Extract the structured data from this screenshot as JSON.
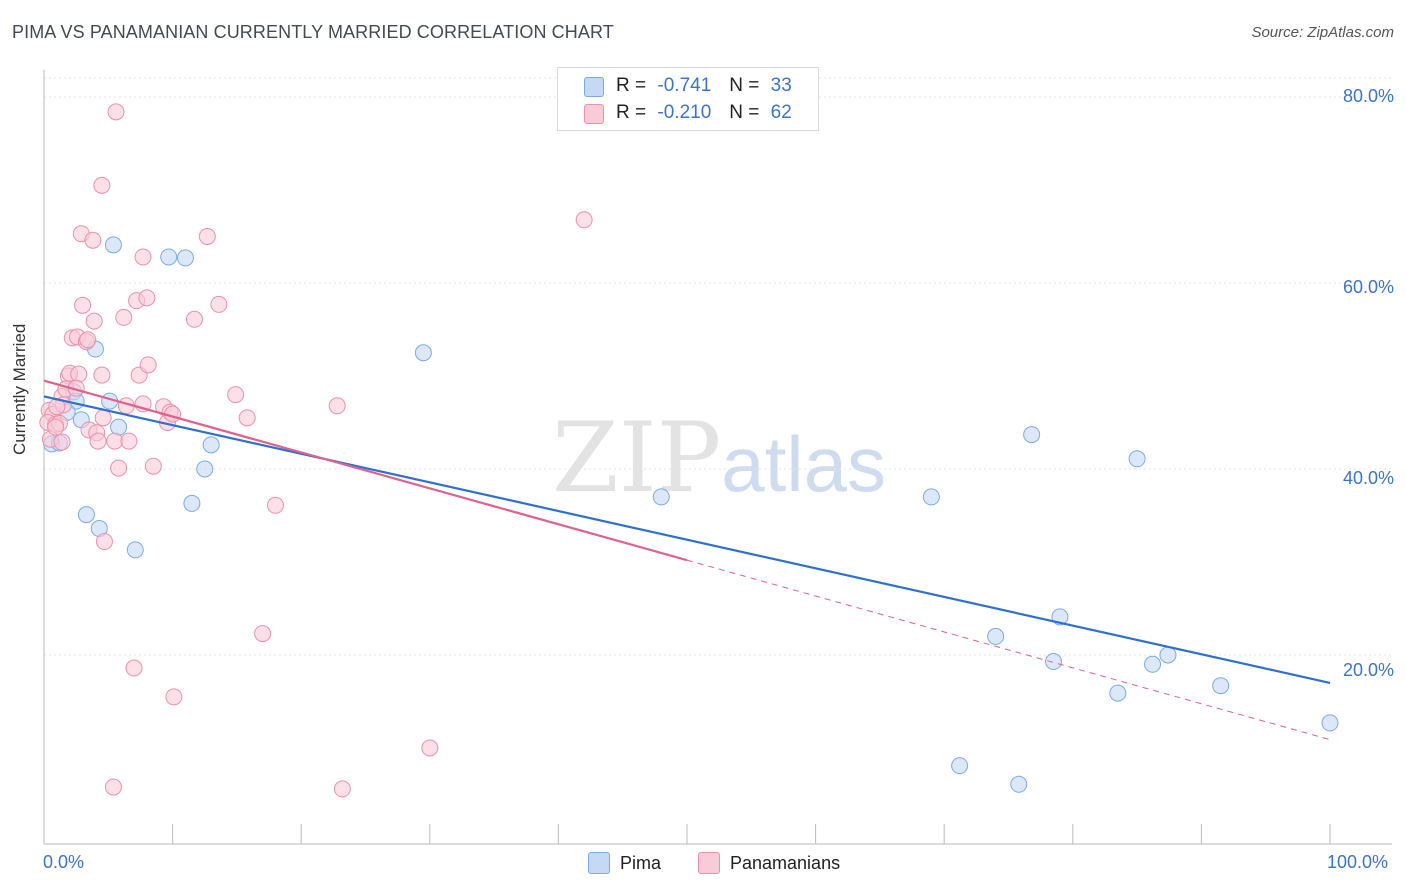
{
  "title": "PIMA VS PANAMANIAN CURRENTLY MARRIED CORRELATION CHART",
  "source": "Source: ZipAtlas.com",
  "watermark": {
    "zip": "ZIP",
    "atlas": "atlas"
  },
  "legend": {
    "r_label": "R =",
    "n_label": "N =",
    "series": [
      {
        "name": "Pima",
        "r": "-0.741",
        "n": "33",
        "color": "#7aaae8",
        "fill": "#c5d9f4"
      },
      {
        "name": "Panamanians",
        "r": "-0.210",
        "n": "62",
        "color": "#ee8fab",
        "fill": "#f9cbd8"
      }
    ]
  },
  "chart_data": {
    "type": "scatter",
    "title": "PIMA VS PANAMANIAN CURRENTLY MARRIED CORRELATION CHART",
    "xlabel": "",
    "ylabel": "Currently Married",
    "xlim": [
      0,
      100
    ],
    "ylim": [
      0,
      82
    ],
    "x_tick_labels": [
      "0.0%",
      "100.0%"
    ],
    "y_ticks": [
      20,
      40,
      60,
      80
    ],
    "y_tick_labels": [
      "20.0%",
      "40.0%",
      "60.0%",
      "80.0%"
    ],
    "grid": true,
    "series": [
      {
        "name": "Pima",
        "color": "#7aaae8",
        "line_color": "#2f6fd0",
        "trend": {
          "x": [
            0,
            100
          ],
          "y": [
            47.8,
            17.0
          ],
          "dashed_from": null
        },
        "points": [
          {
            "x": 0.6,
            "y": 42.7
          },
          {
            "x": 1.2,
            "y": 42.8
          },
          {
            "x": 2.3,
            "y": 48.3
          },
          {
            "x": 2.5,
            "y": 47.3
          },
          {
            "x": 2.9,
            "y": 45.3
          },
          {
            "x": 3.3,
            "y": 35.1
          },
          {
            "x": 4.3,
            "y": 33.6
          },
          {
            "x": 5.4,
            "y": 64.1
          },
          {
            "x": 5.8,
            "y": 44.5
          },
          {
            "x": 4.0,
            "y": 52.9
          },
          {
            "x": 5.1,
            "y": 47.3
          },
          {
            "x": 7.1,
            "y": 31.3
          },
          {
            "x": 9.7,
            "y": 62.8
          },
          {
            "x": 11.0,
            "y": 62.7
          },
          {
            "x": 11.5,
            "y": 36.3
          },
          {
            "x": 12.5,
            "y": 40.0
          },
          {
            "x": 13.0,
            "y": 42.6
          },
          {
            "x": 29.5,
            "y": 52.5
          },
          {
            "x": 48.0,
            "y": 37.0
          },
          {
            "x": 69.0,
            "y": 37.0
          },
          {
            "x": 76.8,
            "y": 43.7
          },
          {
            "x": 85.0,
            "y": 41.1
          },
          {
            "x": 79.0,
            "y": 24.1
          },
          {
            "x": 74.0,
            "y": 22.0
          },
          {
            "x": 78.5,
            "y": 19.3
          },
          {
            "x": 83.5,
            "y": 15.9
          },
          {
            "x": 86.2,
            "y": 19.0
          },
          {
            "x": 87.4,
            "y": 20.0
          },
          {
            "x": 91.5,
            "y": 16.7
          },
          {
            "x": 71.2,
            "y": 8.1
          },
          {
            "x": 75.8,
            "y": 6.1
          },
          {
            "x": 100.0,
            "y": 12.7
          },
          {
            "x": 1.8,
            "y": 46.1
          }
        ]
      },
      {
        "name": "Panamanians",
        "color": "#ee8fab",
        "line_color": "#e0628a",
        "trend": {
          "x": [
            0,
            100
          ],
          "y": [
            49.5,
            10.9
          ],
          "dashed_from": 50
        },
        "points": [
          {
            "x": 5.6,
            "y": 78.4
          },
          {
            "x": 4.5,
            "y": 70.5
          },
          {
            "x": 2.9,
            "y": 65.3
          },
          {
            "x": 3.8,
            "y": 64.6
          },
          {
            "x": 12.7,
            "y": 65.0
          },
          {
            "x": 7.7,
            "y": 62.8
          },
          {
            "x": 3.0,
            "y": 57.6
          },
          {
            "x": 7.2,
            "y": 58.1
          },
          {
            "x": 8.0,
            "y": 58.4
          },
          {
            "x": 13.6,
            "y": 57.7
          },
          {
            "x": 3.9,
            "y": 55.9
          },
          {
            "x": 6.2,
            "y": 56.3
          },
          {
            "x": 11.7,
            "y": 56.1
          },
          {
            "x": 2.2,
            "y": 54.1
          },
          {
            "x": 2.6,
            "y": 54.2
          },
          {
            "x": 3.3,
            "y": 53.7
          },
          {
            "x": 3.4,
            "y": 53.9
          },
          {
            "x": 1.9,
            "y": 50.0
          },
          {
            "x": 2.0,
            "y": 50.3
          },
          {
            "x": 2.7,
            "y": 50.2
          },
          {
            "x": 4.5,
            "y": 50.1
          },
          {
            "x": 7.4,
            "y": 50.1
          },
          {
            "x": 8.1,
            "y": 51.2
          },
          {
            "x": 1.4,
            "y": 47.8
          },
          {
            "x": 1.7,
            "y": 48.6
          },
          {
            "x": 14.9,
            "y": 48.0
          },
          {
            "x": 0.4,
            "y": 46.3
          },
          {
            "x": 0.7,
            "y": 45.9
          },
          {
            "x": 1.5,
            "y": 46.9
          },
          {
            "x": 6.4,
            "y": 46.8
          },
          {
            "x": 7.7,
            "y": 47.0
          },
          {
            "x": 9.3,
            "y": 46.7
          },
          {
            "x": 9.8,
            "y": 46.1
          },
          {
            "x": 22.8,
            "y": 46.8
          },
          {
            "x": 0.3,
            "y": 45.0
          },
          {
            "x": 0.9,
            "y": 44.8
          },
          {
            "x": 1.2,
            "y": 44.9
          },
          {
            "x": 4.6,
            "y": 45.5
          },
          {
            "x": 9.6,
            "y": 45.0
          },
          {
            "x": 15.8,
            "y": 45.5
          },
          {
            "x": 3.5,
            "y": 44.2
          },
          {
            "x": 4.1,
            "y": 43.9
          },
          {
            "x": 0.5,
            "y": 43.2
          },
          {
            "x": 1.4,
            "y": 42.9
          },
          {
            "x": 4.2,
            "y": 43.0
          },
          {
            "x": 5.5,
            "y": 43.0
          },
          {
            "x": 6.6,
            "y": 43.0
          },
          {
            "x": 10.0,
            "y": 45.9
          },
          {
            "x": 5.8,
            "y": 40.1
          },
          {
            "x": 8.5,
            "y": 40.3
          },
          {
            "x": 18.0,
            "y": 36.1
          },
          {
            "x": 4.7,
            "y": 32.2
          },
          {
            "x": 42.0,
            "y": 66.8
          },
          {
            "x": 17.0,
            "y": 22.3
          },
          {
            "x": 7.0,
            "y": 18.6
          },
          {
            "x": 10.1,
            "y": 15.5
          },
          {
            "x": 30.0,
            "y": 10.0
          },
          {
            "x": 5.4,
            "y": 5.8
          },
          {
            "x": 23.2,
            "y": 5.6
          },
          {
            "x": 2.5,
            "y": 48.7
          },
          {
            "x": 1.0,
            "y": 46.7
          },
          {
            "x": 0.9,
            "y": 44.5
          }
        ]
      }
    ]
  }
}
